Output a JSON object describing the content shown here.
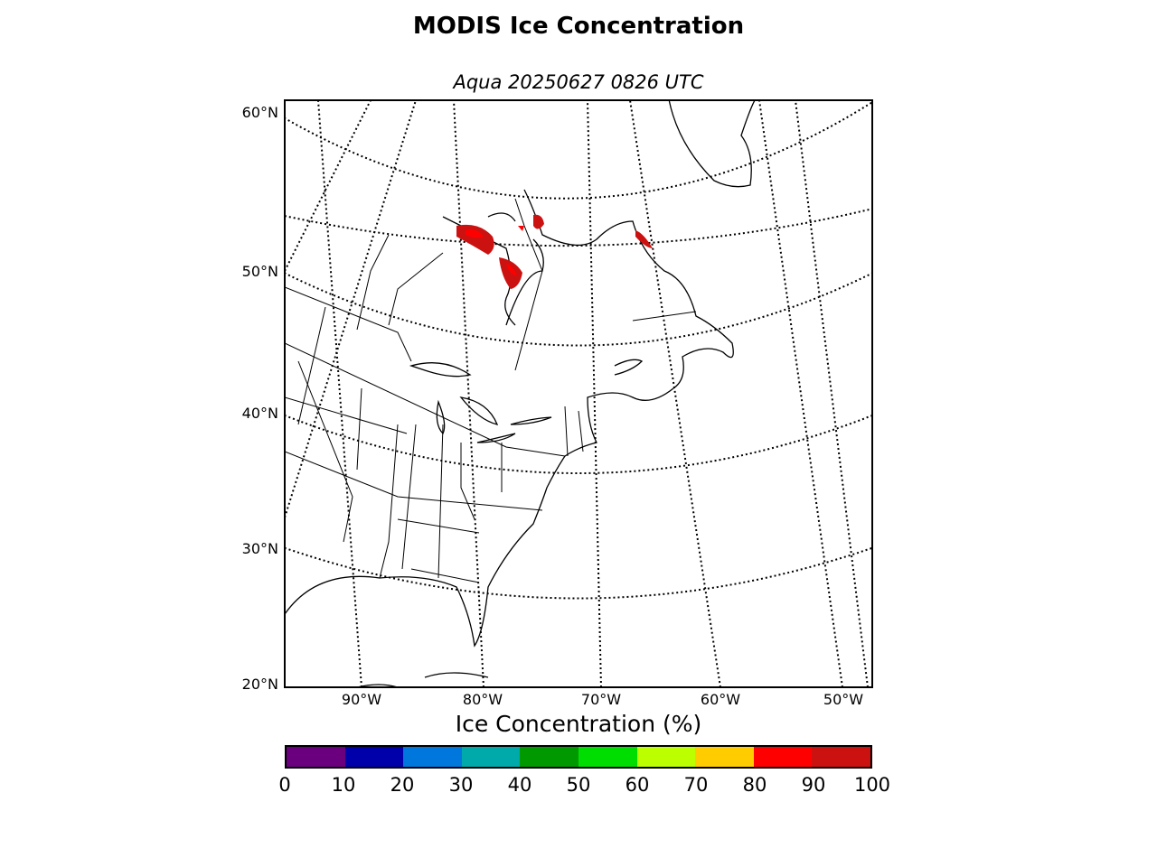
{
  "title": "MODIS Ice Concentration",
  "subtitle": "Aqua 20250627 0826 UTC",
  "map": {
    "lat_labels": [
      "60°N",
      "50°N",
      "40°N",
      "30°N",
      "20°N"
    ],
    "lon_labels": [
      "90°W",
      "80°W",
      "70°W",
      "60°W",
      "50°W"
    ]
  },
  "colorbar": {
    "label": "Ice Concentration (%)",
    "ticks": [
      "0",
      "10",
      "20",
      "30",
      "40",
      "50",
      "60",
      "70",
      "80",
      "90",
      "100"
    ],
    "colors": [
      "#6a007d",
      "#0000aa",
      "#0077dd",
      "#00aaaa",
      "#009900",
      "#00dd00",
      "#bbff00",
      "#ffcc00",
      "#ff0000",
      "#cc1111"
    ]
  }
}
